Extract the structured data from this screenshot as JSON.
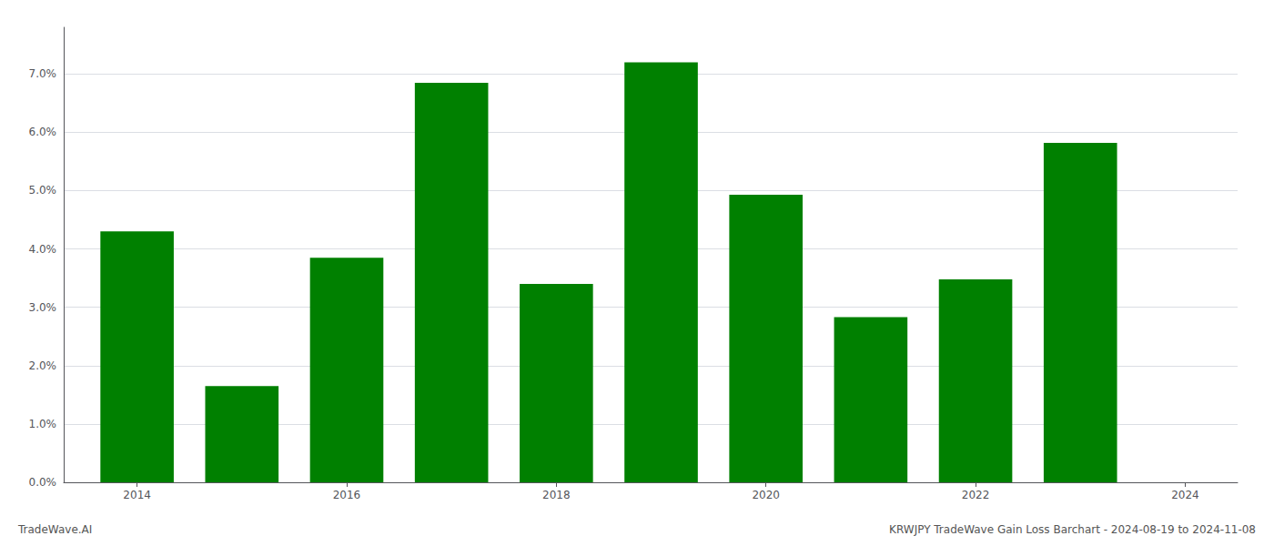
{
  "chart_data": {
    "type": "bar",
    "x": [
      2014,
      2015,
      2016,
      2017,
      2018,
      2019,
      2020,
      2021,
      2022,
      2023
    ],
    "values": [
      0.043,
      0.0165,
      0.0385,
      0.0685,
      0.034,
      0.072,
      0.0493,
      0.0283,
      0.0348,
      0.0582
    ],
    "color": "#008000",
    "xlim": [
      2013.3,
      2024.5
    ],
    "xticks": [
      2014,
      2016,
      2018,
      2020,
      2022,
      2024
    ],
    "ylim": [
      0,
      0.078
    ],
    "yticks": [
      {
        "value": 0.0,
        "label": "0.0%"
      },
      {
        "value": 0.01,
        "label": "1.0%"
      },
      {
        "value": 0.02,
        "label": "2.0%"
      },
      {
        "value": 0.03,
        "label": "3.0%"
      },
      {
        "value": 0.04,
        "label": "4.0%"
      },
      {
        "value": 0.05,
        "label": "5.0%"
      },
      {
        "value": 0.06,
        "label": "6.0%"
      },
      {
        "value": 0.07,
        "label": "7.0%"
      }
    ],
    "grid": true,
    "annotations": [
      "TradeWave.AI",
      "KRWJPY TradeWave Gain Loss Barchart - 2024-08-19 to 2024-11-08"
    ]
  }
}
